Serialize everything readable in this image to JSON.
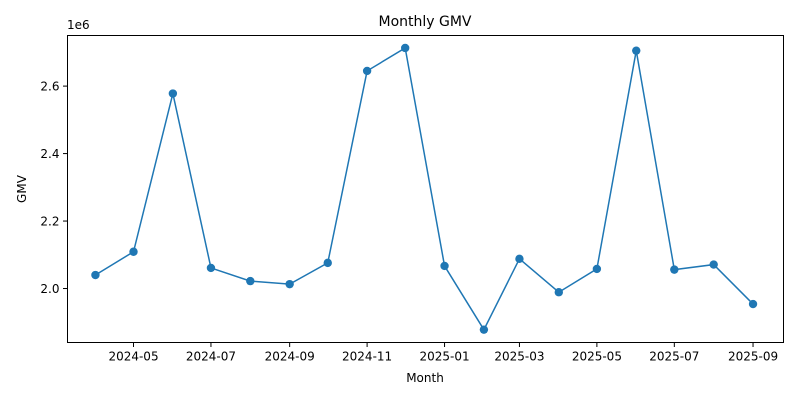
{
  "chart_data": {
    "type": "line",
    "title": "Monthly GMV",
    "xlabel": "Month",
    "ylabel": "GMV",
    "y_offset_label": "1e6",
    "x": [
      "2024-04-01",
      "2024-05-01",
      "2024-06-01",
      "2024-07-01",
      "2024-08-01",
      "2024-09-01",
      "2024-10-01",
      "2024-11-01",
      "2024-12-01",
      "2025-01-01",
      "2025-02-01",
      "2025-03-01",
      "2025-04-01",
      "2025-05-01",
      "2025-06-01",
      "2025-07-01",
      "2025-08-01",
      "2025-09-01"
    ],
    "series": [
      {
        "values": [
          2040000,
          2109000,
          2578000,
          2061000,
          2022000,
          2013000,
          2076000,
          2645000,
          2713000,
          2067000,
          1878000,
          2088000,
          1989000,
          2058000,
          2705000,
          2056000,
          2071000,
          1954000
        ],
        "color": "#1f77b4"
      }
    ],
    "x_ticks": [
      "2024-05",
      "2024-07",
      "2024-09",
      "2024-11",
      "2025-01",
      "2025-03",
      "2025-05",
      "2025-07",
      "2025-09"
    ],
    "y_ticks": [
      "2.0",
      "2.2",
      "2.4",
      "2.6"
    ],
    "ylim": [
      1840000,
      2750000
    ],
    "xlim": [
      "2024-03-10",
      "2025-09-25"
    ],
    "grid": false,
    "legend": false
  }
}
